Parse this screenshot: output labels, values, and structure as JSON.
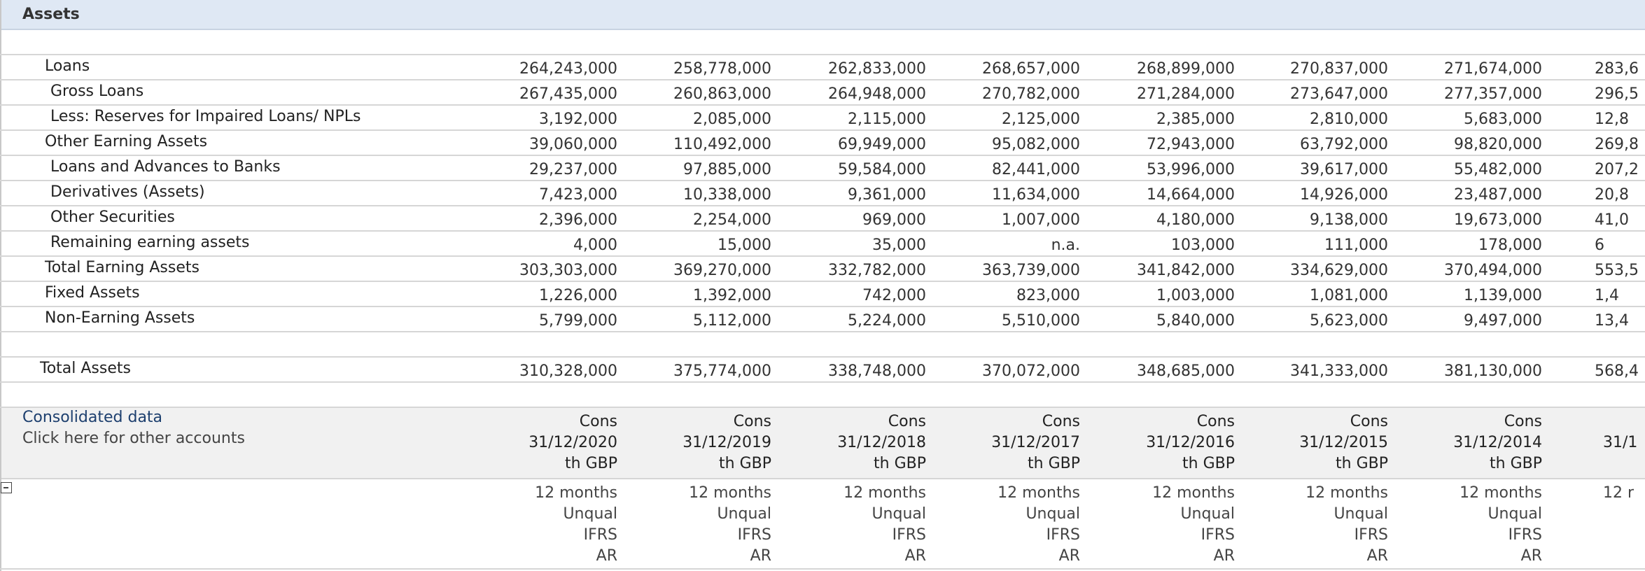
{
  "header": {
    "title": "Assets"
  },
  "rows": [
    {
      "label": "Loans",
      "values": [
        "264,243,000",
        "258,778,000",
        "262,833,000",
        "268,657,000",
        "268,899,000",
        "270,837,000",
        "271,674,000"
      ],
      "cut": "283,6"
    },
    {
      "label": "Gross Loans",
      "values": [
        "267,435,000",
        "260,863,000",
        "264,948,000",
        "270,782,000",
        "271,284,000",
        "273,647,000",
        "277,357,000"
      ],
      "cut": "296,5"
    },
    {
      "label": "Less: Reserves for Impaired Loans/ NPLs",
      "values": [
        "3,192,000",
        "2,085,000",
        "2,115,000",
        "2,125,000",
        "2,385,000",
        "2,810,000",
        "5,683,000"
      ],
      "cut": "12,8"
    },
    {
      "label": "Other Earning Assets",
      "values": [
        "39,060,000",
        "110,492,000",
        "69,949,000",
        "95,082,000",
        "72,943,000",
        "63,792,000",
        "98,820,000"
      ],
      "cut": "269,8"
    },
    {
      "label": "Loans and Advances to Banks",
      "values": [
        "29,237,000",
        "97,885,000",
        "59,584,000",
        "82,441,000",
        "53,996,000",
        "39,617,000",
        "55,482,000"
      ],
      "cut": "207,2"
    },
    {
      "label": "Derivatives (Assets)",
      "values": [
        "7,423,000",
        "10,338,000",
        "9,361,000",
        "11,634,000",
        "14,664,000",
        "14,926,000",
        "23,487,000"
      ],
      "cut": "20,8"
    },
    {
      "label": "Other Securities",
      "values": [
        "2,396,000",
        "2,254,000",
        "969,000",
        "1,007,000",
        "4,180,000",
        "9,138,000",
        "19,673,000"
      ],
      "cut": "41,0"
    },
    {
      "label": "Remaining earning assets",
      "values": [
        "4,000",
        "15,000",
        "35,000",
        "n.a.",
        "103,000",
        "111,000",
        "178,000"
      ],
      "cut": "6"
    },
    {
      "label": "Total Earning Assets",
      "values": [
        "303,303,000",
        "369,270,000",
        "332,782,000",
        "363,739,000",
        "341,842,000",
        "334,629,000",
        "370,494,000"
      ],
      "cut": "553,5"
    },
    {
      "label": "Fixed Assets",
      "values": [
        "1,226,000",
        "1,392,000",
        "742,000",
        "823,000",
        "1,003,000",
        "1,081,000",
        "1,139,000"
      ],
      "cut": "1,4"
    },
    {
      "label": "Non-Earning Assets",
      "values": [
        "5,799,000",
        "5,112,000",
        "5,224,000",
        "5,510,000",
        "5,840,000",
        "5,623,000",
        "9,497,000"
      ],
      "cut": "13,4"
    },
    {
      "label": "Total Assets",
      "values": [
        "310,328,000",
        "375,774,000",
        "338,748,000",
        "370,072,000",
        "348,685,000",
        "341,333,000",
        "381,130,000"
      ],
      "cut": "568,4"
    }
  ],
  "footer": {
    "link": "Consolidated data",
    "note": "Click here for other accounts",
    "columns": [
      {
        "head": [
          "Cons",
          "31/12/2020",
          "th GBP"
        ],
        "details": [
          "12 months",
          "Unqual",
          "IFRS",
          "AR"
        ]
      },
      {
        "head": [
          "Cons",
          "31/12/2019",
          "th GBP"
        ],
        "details": [
          "12 months",
          "Unqual",
          "IFRS",
          "AR"
        ]
      },
      {
        "head": [
          "Cons",
          "31/12/2018",
          "th GBP"
        ],
        "details": [
          "12 months",
          "Unqual",
          "IFRS",
          "AR"
        ]
      },
      {
        "head": [
          "Cons",
          "31/12/2017",
          "th GBP"
        ],
        "details": [
          "12 months",
          "Unqual",
          "IFRS",
          "AR"
        ]
      },
      {
        "head": [
          "Cons",
          "31/12/2016",
          "th GBP"
        ],
        "details": [
          "12 months",
          "Unqual",
          "IFRS",
          "AR"
        ]
      },
      {
        "head": [
          "Cons",
          "31/12/2015",
          "th GBP"
        ],
        "details": [
          "12 months",
          "Unqual",
          "IFRS",
          "AR"
        ]
      },
      {
        "head": [
          "Cons",
          "31/12/2014",
          "th GBP"
        ],
        "details": [
          "12 months",
          "Unqual",
          "IFRS",
          "AR"
        ]
      }
    ],
    "cut_date": "31/1",
    "cut_period": "12 r"
  }
}
